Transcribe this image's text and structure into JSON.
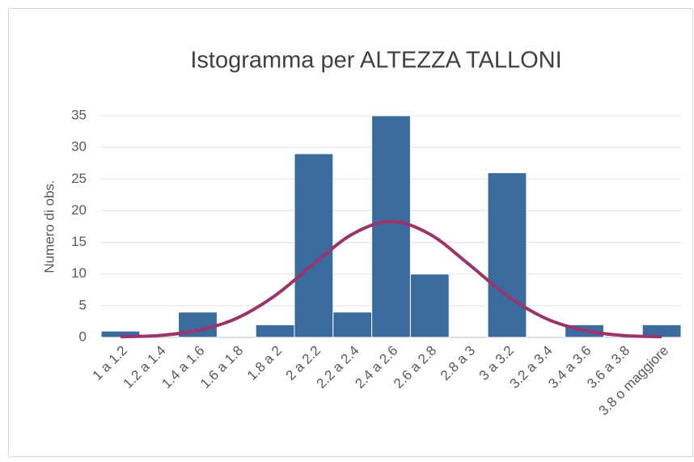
{
  "chart_data": {
    "type": "bar",
    "title": "Istogramma per ALTEZZA TALLONI",
    "y_label": "Numero di obs.",
    "categories": [
      "1 a 1.2",
      "1.2 a 1.4",
      "1.4 a 1.6",
      "1.6 a 1.8",
      "1.8 a 2",
      "2 a 2.2",
      "2.2 a 2.4",
      "2.4 a 2.6",
      "2.6 a 2.8",
      "2.8 a 3",
      "3 a 3.2",
      "3.2 a 3.4",
      "3.4 a 3.6",
      "3.6 a 3.8",
      "3.8 o maggiore"
    ],
    "series": [
      {
        "type": "bar",
        "color": "#3a6b9e",
        "values": [
          1,
          0,
          4,
          0,
          2,
          29,
          4,
          35,
          10,
          0,
          26,
          0,
          2,
          0,
          2
        ]
      },
      {
        "type": "line",
        "color": "#9b3469",
        "values": [
          0.1,
          0.3,
          1.1,
          3.0,
          6.6,
          11.6,
          16.3,
          18.3,
          16.3,
          11.6,
          6.6,
          3.0,
          1.1,
          0.3,
          0.1
        ]
      }
    ],
    "ylim": [
      0,
      35
    ],
    "yticks": [
      0,
      5,
      10,
      15,
      20,
      25,
      30,
      35
    ],
    "grid": true
  }
}
